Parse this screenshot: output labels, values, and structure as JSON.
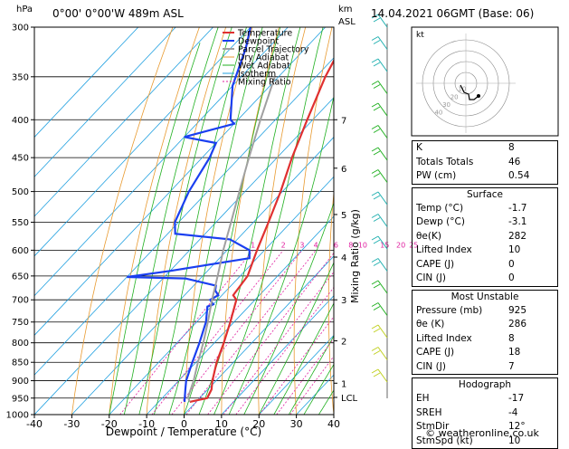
{
  "header": {
    "location": "0°00' 0°00'W 489m ASL",
    "datetime": "14.04.2021 06GMT (Base: 06)",
    "hpa_label": "hPa",
    "km_label": "km",
    "asl_label": "ASL",
    "mixing_ratio_label": "Mixing Ratio (g/kg)"
  },
  "footer": {
    "copyright": "© weatheronline.co.uk"
  },
  "colors": {
    "temperature": "#e03030",
    "dewpoint": "#1a3ff0",
    "parcel": "#a0a0a0",
    "dry_adiabat": "#e89a30",
    "wet_adiabat": "#20b020",
    "isotherm": "#20a0e0",
    "mixing_ratio": "#e020a0"
  },
  "chart_data": {
    "type": "line",
    "title": "",
    "xlabel": "Dewpoint / Temperature (°C)",
    "ylabel": "hPa",
    "xlim": [
      -40,
      40
    ],
    "ylim": [
      1000,
      300
    ],
    "x_ticks": [
      "-40",
      "-30",
      "-20",
      "-10",
      "0",
      "10",
      "20",
      "30",
      "40"
    ],
    "pressure_ticks": [
      300,
      350,
      400,
      450,
      500,
      550,
      600,
      650,
      700,
      750,
      800,
      850,
      900,
      950,
      1000
    ],
    "km_ticks": [
      {
        "label": "7",
        "p": 400
      },
      {
        "label": "6",
        "p": 465
      },
      {
        "label": "5",
        "p": 537
      },
      {
        "label": "4",
        "p": 613
      },
      {
        "label": "3",
        "p": 700
      },
      {
        "label": "2",
        "p": 795
      },
      {
        "label": "1",
        "p": 907
      },
      {
        "label": "LCL",
        "p": 948
      }
    ],
    "mixing_ratio_labels": [
      "1",
      "2",
      "3",
      "4",
      "6",
      "8",
      "10",
      "15",
      "20",
      "25"
    ],
    "legend": [
      "Temperature",
      "Dewpoint",
      "Parcel Trajectory",
      "Dry Adiabat",
      "Wet Adiabat",
      "Isotherm",
      "Mixing Ratio"
    ],
    "legend_position": "top-center",
    "series": [
      {
        "name": "Temperature",
        "points": [
          [
            961,
            -1.7
          ],
          [
            950,
            2
          ],
          [
            925,
            1
          ],
          [
            900,
            -1
          ],
          [
            850,
            -4.5
          ],
          [
            800,
            -7.5
          ],
          [
            750,
            -11
          ],
          [
            700,
            -15
          ],
          [
            690,
            -17
          ],
          [
            650,
            -18
          ],
          [
            600,
            -22
          ],
          [
            550,
            -26
          ],
          [
            500,
            -30.5
          ],
          [
            450,
            -36
          ],
          [
            400,
            -41.5
          ],
          [
            350,
            -47.5
          ],
          [
            300,
            -53
          ]
        ]
      },
      {
        "name": "Dewpoint",
        "points": [
          [
            961,
            -3.1
          ],
          [
            950,
            -4
          ],
          [
            925,
            -6
          ],
          [
            900,
            -8
          ],
          [
            850,
            -11
          ],
          [
            800,
            -14
          ],
          [
            750,
            -17.5
          ],
          [
            715,
            -21
          ],
          [
            710,
            -20
          ],
          [
            700,
            -22
          ],
          [
            690,
            -21
          ],
          [
            680,
            -23
          ],
          [
            670,
            -24
          ],
          [
            655,
            -34
          ],
          [
            652,
            -50
          ],
          [
            640,
            -40
          ],
          [
            615,
            -22
          ],
          [
            600,
            -24
          ],
          [
            580,
            -32
          ],
          [
            570,
            -48
          ],
          [
            550,
            -51
          ],
          [
            500,
            -55
          ],
          [
            450,
            -58
          ],
          [
            430,
            -60
          ],
          [
            422,
            -70
          ],
          [
            405,
            -60
          ],
          [
            400,
            -62
          ],
          [
            360,
            -70
          ],
          [
            320,
            -76
          ],
          [
            300,
            -80
          ]
        ]
      },
      {
        "name": "Parcel Trajectory",
        "points": [
          [
            961,
            -1.7
          ],
          [
            948,
            -3.3
          ],
          [
            900,
            -6
          ],
          [
            850,
            -9.5
          ],
          [
            800,
            -13
          ],
          [
            750,
            -17
          ],
          [
            700,
            -21.5
          ],
          [
            650,
            -26
          ],
          [
            600,
            -31
          ],
          [
            550,
            -36
          ],
          [
            500,
            -41.5
          ],
          [
            450,
            -47.5
          ],
          [
            400,
            -54
          ],
          [
            350,
            -61
          ]
        ]
      }
    ]
  },
  "hodograph": {
    "label": "kt",
    "rings": [
      "10",
      "20",
      "30",
      "40"
    ]
  },
  "indices": {
    "rows": [
      {
        "label": "K",
        "value": "8"
      },
      {
        "label": "Totals Totals",
        "value": "46"
      },
      {
        "label": "PW (cm)",
        "value": "0.54"
      }
    ]
  },
  "surface": {
    "title": "Surface",
    "rows": [
      {
        "label": "Temp (°C)",
        "value": "-1.7"
      },
      {
        "label": "Dewp (°C)",
        "value": "-3.1"
      },
      {
        "label": "θe(K)",
        "value": "282"
      },
      {
        "label": "Lifted Index",
        "value": "10"
      },
      {
        "label": "CAPE (J)",
        "value": "0"
      },
      {
        "label": "CIN (J)",
        "value": "0"
      }
    ]
  },
  "most_unstable": {
    "title": "Most Unstable",
    "rows": [
      {
        "label": "Pressure (mb)",
        "value": "925"
      },
      {
        "label": "θe (K)",
        "value": "286"
      },
      {
        "label": "Lifted Index",
        "value": "8"
      },
      {
        "label": "CAPE (J)",
        "value": "18"
      },
      {
        "label": "CIN (J)",
        "value": "7"
      }
    ]
  },
  "hodograph_table": {
    "title": "Hodograph",
    "rows": [
      {
        "label": "EH",
        "value": "-17"
      },
      {
        "label": "SREH",
        "value": "-4"
      },
      {
        "label": "StmDir",
        "value": "12°"
      },
      {
        "label": "StmSpd (kt)",
        "value": "10"
      }
    ]
  }
}
